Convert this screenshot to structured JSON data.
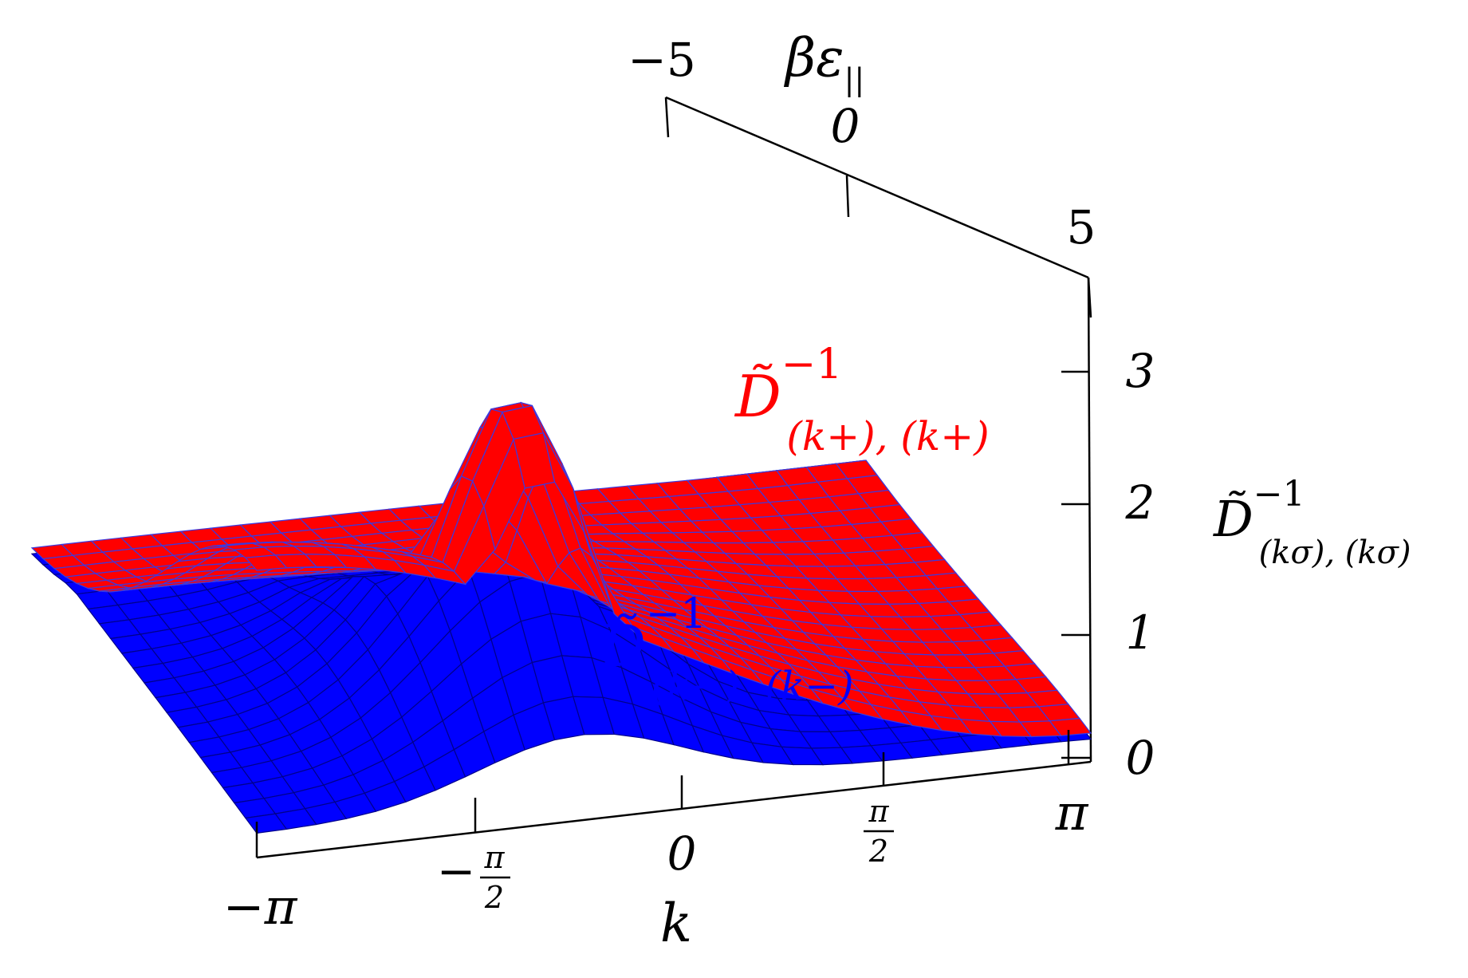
{
  "chart_data": {
    "type": "surface3d",
    "title": "",
    "axes": {
      "k": {
        "label": "k",
        "ticks": [
          {
            "value": -3.14159,
            "label": "−π"
          },
          {
            "value": -1.5708,
            "label": "−",
            "frac_num": "π",
            "frac_den": "2"
          },
          {
            "value": 0,
            "label": "0"
          },
          {
            "value": 1.5708,
            "label": "",
            "frac_num": "π",
            "frac_den": "2"
          },
          {
            "value": 3.14159,
            "label": "π"
          }
        ],
        "range": [
          -3.14159,
          3.14159
        ]
      },
      "beta_eps": {
        "label_main": "βε",
        "label_sub": "||",
        "ticks": [
          {
            "value": -5,
            "label": "−5"
          },
          {
            "value": 0,
            "label": "0"
          },
          {
            "value": 5,
            "label": "5"
          }
        ],
        "range": [
          -5,
          5
        ]
      },
      "D": {
        "label_main": "D̃",
        "label_sup": "−1",
        "label_sub": "(kσ), (kσ)",
        "ticks": [
          {
            "value": 0,
            "label": "0"
          },
          {
            "value": 1,
            "label": "1"
          },
          {
            "value": 2,
            "label": "2"
          },
          {
            "value": 3,
            "label": "3"
          }
        ],
        "range": [
          0,
          3.7
        ]
      }
    },
    "series": [
      {
        "name_main": "D̃",
        "name_sup": "−1",
        "name_sub": "(k+), (k+)",
        "color": "#ff0000",
        "mesh_color": "#3a3ae0",
        "peak_value": 3.6,
        "peak_at": {
          "k": -1.0,
          "beta_eps": -4.0
        },
        "corner_values": {
          "k_min_eps_min": 2.4,
          "k_min_eps_max": 0.02,
          "k_max_eps_max": 0.25
        }
      },
      {
        "name_main": "D̃",
        "name_sup": "−1",
        "name_sub": "(k−), (k−)",
        "color": "#0000ff",
        "peak_value": 2.0,
        "peak_at": {
          "k": -0.7,
          "beta_eps": -1.5
        }
      }
    ]
  }
}
